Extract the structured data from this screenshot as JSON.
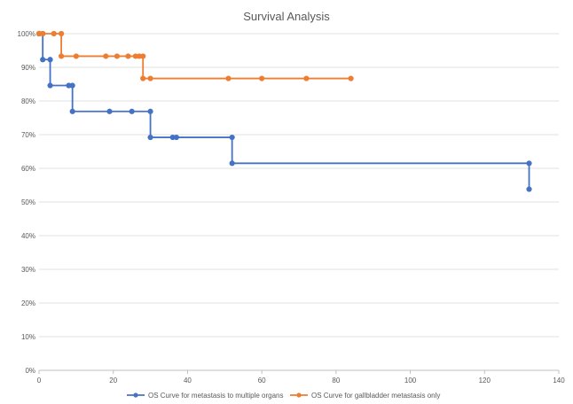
{
  "chart_data": {
    "type": "line",
    "step": true,
    "title": "Survival Analysis",
    "xlabel": "",
    "ylabel": "",
    "xlim": [
      0,
      140
    ],
    "ylim": [
      0,
      100
    ],
    "x_ticks": [
      0,
      20,
      40,
      60,
      80,
      100,
      120,
      140
    ],
    "y_ticks": [
      0,
      10,
      20,
      30,
      40,
      50,
      60,
      70,
      80,
      90,
      100
    ],
    "y_tick_format": "percent",
    "grid": "horizontal",
    "legend_position": "bottom",
    "series": [
      {
        "name": "OS Curve for metastasis to multiple organs",
        "color": "#4472C4",
        "points": [
          [
            0,
            100
          ],
          [
            1,
            100
          ],
          [
            1,
            92.3
          ],
          [
            3,
            92.3
          ],
          [
            3,
            84.6
          ],
          [
            8,
            84.6
          ],
          [
            9,
            84.6
          ],
          [
            9,
            76.9
          ],
          [
            19,
            76.9
          ],
          [
            25,
            76.9
          ],
          [
            30,
            76.9
          ],
          [
            30,
            69.2
          ],
          [
            36,
            69.2
          ],
          [
            37,
            69.2
          ],
          [
            52,
            69.2
          ],
          [
            52,
            61.5
          ],
          [
            132,
            61.5
          ],
          [
            132,
            53.8
          ]
        ]
      },
      {
        "name": "OS Curve for gallbladder metastasis only",
        "color": "#ED7D31",
        "points": [
          [
            0,
            100
          ],
          [
            1,
            100
          ],
          [
            4,
            100
          ],
          [
            6,
            100
          ],
          [
            6,
            93.3
          ],
          [
            10,
            93.3
          ],
          [
            18,
            93.3
          ],
          [
            21,
            93.3
          ],
          [
            24,
            93.3
          ],
          [
            26,
            93.3
          ],
          [
            27,
            93.3
          ],
          [
            28,
            93.3
          ],
          [
            28,
            86.7
          ],
          [
            30,
            86.7
          ],
          [
            51,
            86.7
          ],
          [
            60,
            86.7
          ],
          [
            72,
            86.7
          ],
          [
            84,
            86.7
          ]
        ]
      }
    ]
  }
}
